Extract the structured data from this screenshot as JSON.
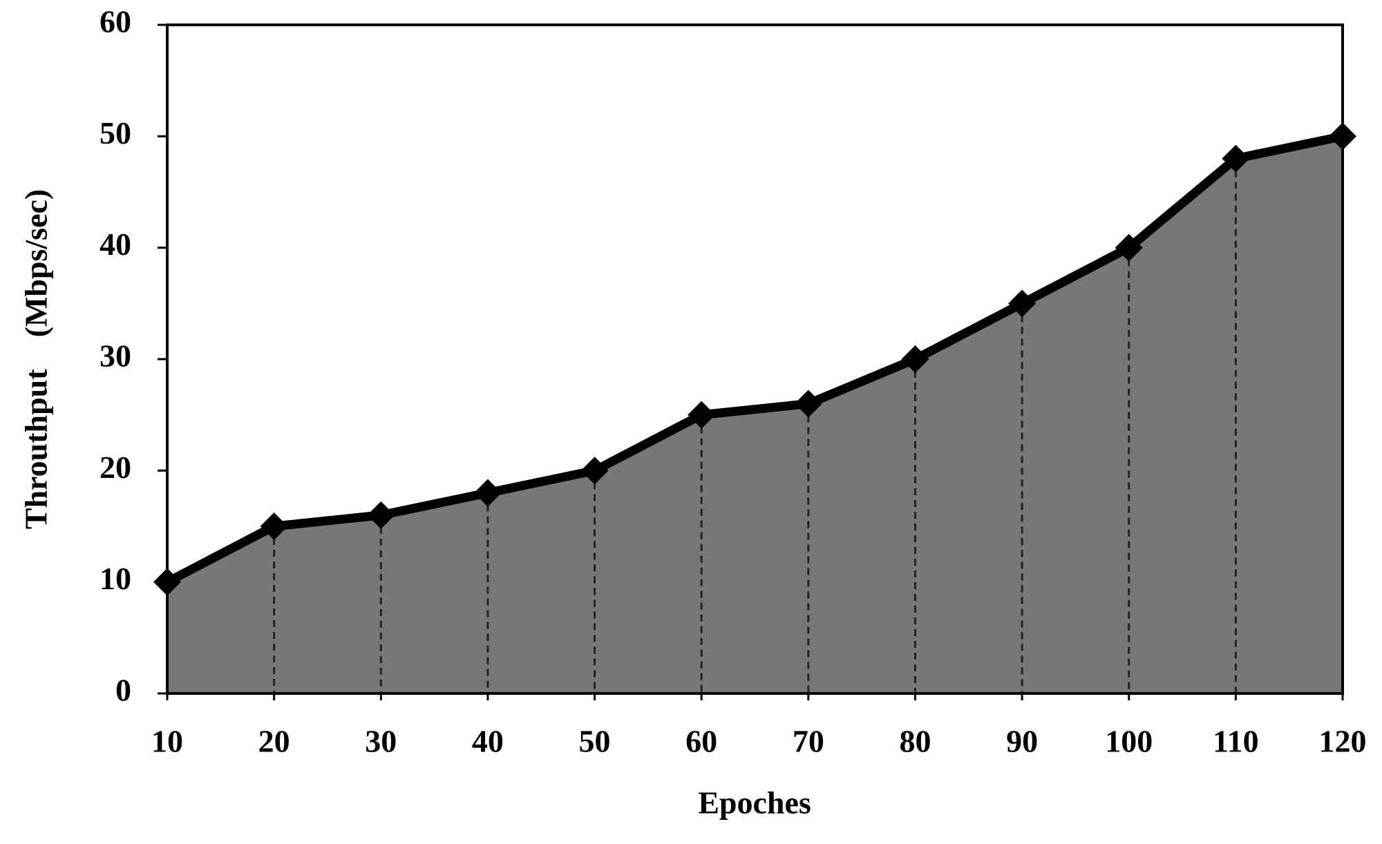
{
  "chart_data": {
    "type": "area",
    "x_label": "Epoches",
    "y_label": "Throuthput    (Mbps/sec)",
    "x": [
      10,
      20,
      30,
      40,
      50,
      60,
      70,
      80,
      90,
      100,
      110,
      120
    ],
    "values": [
      10,
      15,
      16,
      18,
      20,
      25,
      26,
      30,
      35,
      40,
      48,
      50
    ],
    "color": "#777777",
    "line_color": "#000000",
    "xlim": [
      10,
      120
    ],
    "xticks": [
      10,
      20,
      30,
      40,
      50,
      60,
      70,
      80,
      90,
      100,
      110,
      120
    ],
    "ylim": [
      0,
      60
    ],
    "yticks": [
      0,
      10,
      20,
      30,
      40,
      50,
      60
    ],
    "grid": false,
    "drop_lines": true
  }
}
